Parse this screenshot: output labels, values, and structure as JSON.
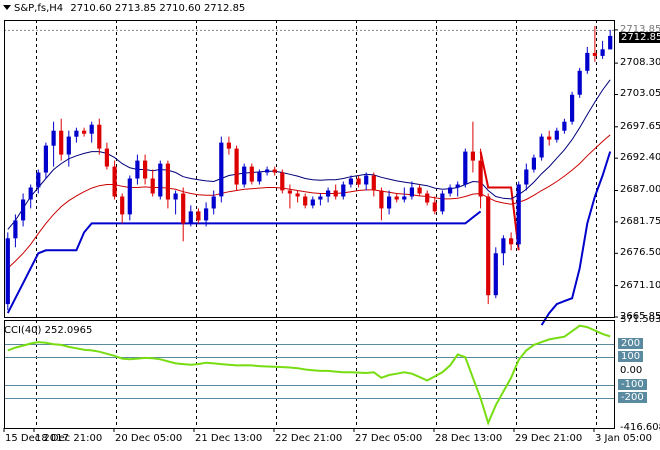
{
  "header": {
    "symbol": "S&P,fs,H4",
    "ohlc": "2710.60 2713.85 2710.60 2712.85"
  },
  "indicator": {
    "label": "CCI(40) 252.0965"
  },
  "colors": {
    "bull": "#0000cc",
    "bear": "#dd0000",
    "sma_dark": "#00007a",
    "sma_red": "#cc0000",
    "envelope": "#0000cc",
    "cci": "#77dd11",
    "level_line": "#5a8aa0",
    "grid": "#000000"
  },
  "chart_data": [
    {
      "type": "candlestick",
      "name": "main",
      "ylim": [
        2665.85,
        2715.5
      ],
      "price_ticks": [
        "2713.85",
        "2708.30",
        "2703.05",
        "2697.65",
        "2692.40",
        "2687.00",
        "2681.75",
        "2676.50",
        "2671.10",
        "2665.85"
      ],
      "current_price": "2712.85",
      "time_labels": [
        "15 Dec 2017",
        "18 Dec 21:00",
        "20 Dec 05:00",
        "21 Dec 13:00",
        "22 Dec 21:00",
        "27 Dec 05:00",
        "28 Dec 13:00",
        "29 Dec 21:00",
        "3 Jan 05:00"
      ],
      "candles": [
        [
          2668.0,
          2680.0,
          2667.0,
          2679.0
        ],
        [
          2679.0,
          2683.0,
          2677.5,
          2682.0
        ],
        [
          2682.0,
          2686.5,
          2681.0,
          2685.5
        ],
        [
          2685.5,
          2688.0,
          2684.0,
          2687.5
        ],
        [
          2687.5,
          2690.5,
          2686.5,
          2690.0
        ],
        [
          2690.0,
          2695.0,
          2689.0,
          2694.5
        ],
        [
          2694.5,
          2698.5,
          2691.0,
          2697.0
        ],
        [
          2697.0,
          2699.0,
          2692.0,
          2693.0
        ],
        [
          2693.0,
          2697.0,
          2691.0,
          2696.0
        ],
        [
          2696.0,
          2697.5,
          2695.0,
          2697.0
        ],
        [
          2697.0,
          2697.5,
          2696.0,
          2696.5
        ],
        [
          2696.5,
          2698.5,
          2695.0,
          2698.0
        ],
        [
          2698.0,
          2699.0,
          2693.0,
          2694.0
        ],
        [
          2694.0,
          2695.0,
          2690.5,
          2691.0
        ],
        [
          2691.0,
          2692.0,
          2685.5,
          2686.0
        ],
        [
          2686.0,
          2686.5,
          2681.5,
          2683.0
        ],
        [
          2683.0,
          2689.5,
          2682.0,
          2689.0
        ],
        [
          2689.0,
          2693.0,
          2688.0,
          2692.0
        ],
        [
          2692.0,
          2693.0,
          2688.0,
          2689.0
        ],
        [
          2689.0,
          2690.5,
          2686.0,
          2686.5
        ],
        [
          2686.0,
          2692.0,
          2685.5,
          2691.5
        ],
        [
          2691.5,
          2692.0,
          2684.0,
          2685.5
        ],
        [
          2685.5,
          2687.0,
          2683.0,
          2686.5
        ],
        [
          2686.5,
          2687.5,
          2678.5,
          2681.5
        ],
        [
          2681.5,
          2684.5,
          2681.0,
          2683.5
        ],
        [
          2683.5,
          2684.0,
          2681.5,
          2682.0
        ],
        [
          2682.0,
          2685.0,
          2681.0,
          2684.0
        ],
        [
          2684.0,
          2687.0,
          2683.0,
          2686.0
        ],
        [
          2686.0,
          2696.0,
          2685.0,
          2695.0
        ],
        [
          2695.0,
          2696.0,
          2693.0,
          2694.0
        ],
        [
          2694.0,
          2694.5,
          2687.0,
          2688.0
        ],
        [
          2688.0,
          2691.5,
          2687.5,
          2691.0
        ],
        [
          2691.0,
          2691.5,
          2688.0,
          2688.5
        ],
        [
          2688.5,
          2690.5,
          2688.0,
          2690.0
        ],
        [
          2690.0,
          2691.0,
          2689.5,
          2690.5
        ],
        [
          2690.5,
          2691.0,
          2689.5,
          2690.0
        ],
        [
          2690.0,
          2690.5,
          2686.5,
          2687.0
        ],
        [
          2687.0,
          2688.0,
          2684.0,
          2686.5
        ],
        [
          2686.5,
          2687.0,
          2685.0,
          2686.0
        ],
        [
          2686.0,
          2686.5,
          2684.0,
          2684.5
        ],
        [
          2684.5,
          2686.0,
          2684.0,
          2685.5
        ],
        [
          2685.5,
          2686.5,
          2684.5,
          2686.0
        ],
        [
          2686.0,
          2687.5,
          2685.0,
          2687.0
        ],
        [
          2687.0,
          2688.0,
          2685.5,
          2686.0
        ],
        [
          2686.0,
          2688.5,
          2685.5,
          2688.0
        ],
        [
          2688.0,
          2689.5,
          2687.5,
          2689.0
        ],
        [
          2689.0,
          2689.5,
          2687.5,
          2688.0
        ],
        [
          2688.0,
          2690.0,
          2687.0,
          2689.5
        ],
        [
          2689.5,
          2690.0,
          2686.0,
          2687.0
        ],
        [
          2687.0,
          2687.5,
          2682.0,
          2684.0
        ],
        [
          2684.0,
          2687.0,
          2683.0,
          2686.0
        ],
        [
          2686.0,
          2686.5,
          2685.0,
          2685.5
        ],
        [
          2685.5,
          2687.5,
          2685.0,
          2686.0
        ],
        [
          2686.0,
          2688.5,
          2685.5,
          2687.5
        ],
        [
          2687.5,
          2688.0,
          2686.0,
          2686.5
        ],
        [
          2686.5,
          2687.0,
          2684.5,
          2685.0
        ],
        [
          2685.0,
          2686.0,
          2683.0,
          2683.5
        ],
        [
          2683.5,
          2687.0,
          2683.0,
          2686.5
        ],
        [
          2686.5,
          2688.0,
          2686.0,
          2687.5
        ],
        [
          2687.5,
          2688.5,
          2686.0,
          2688.0
        ],
        [
          2688.0,
          2694.0,
          2687.5,
          2693.5
        ],
        [
          2693.5,
          2698.5,
          2690.0,
          2692.0
        ],
        [
          2692.0,
          2694.0,
          2684.0,
          2686.0
        ],
        [
          2686.0,
          2686.5,
          2668.0,
          2669.5
        ],
        [
          2669.5,
          2677.5,
          2669.0,
          2676.5
        ],
        [
          2676.5,
          2679.5,
          2674.5,
          2679.0
        ],
        [
          2679.0,
          2680.0,
          2677.0,
          2678.0
        ],
        [
          2678.0,
          2688.5,
          2677.5,
          2688.0
        ],
        [
          2688.0,
          2691.5,
          2687.0,
          2690.5
        ],
        [
          2690.5,
          2693.0,
          2690.0,
          2692.5
        ],
        [
          2692.5,
          2696.5,
          2692.0,
          2696.0
        ],
        [
          2696.0,
          2697.0,
          2694.5,
          2695.5
        ],
        [
          2695.5,
          2697.5,
          2695.0,
          2697.0
        ],
        [
          2697.0,
          2699.0,
          2696.5,
          2698.5
        ],
        [
          2698.5,
          2703.5,
          2698.0,
          2703.0
        ],
        [
          2703.0,
          2707.5,
          2702.5,
          2707.0
        ],
        [
          2707.0,
          2711.0,
          2706.5,
          2710.0
        ],
        [
          2710.0,
          2714.5,
          2708.5,
          2709.5
        ],
        [
          2709.5,
          2712.0,
          2709.0,
          2710.6
        ],
        [
          2710.6,
          2713.85,
          2710.6,
          2712.85
        ]
      ],
      "series": [
        {
          "style": "sma-dark",
          "values": [
            2680.5,
            2682.0,
            2684.0,
            2686.0,
            2687.5,
            2689.0,
            2690.5,
            2691.5,
            2692.3,
            2692.8,
            2693.2,
            2693.5,
            2693.5,
            2693.2,
            2692.5,
            2691.5,
            2690.8,
            2690.5,
            2690.5,
            2690.3,
            2690.5,
            2690.4,
            2690.0,
            2689.3,
            2689.0,
            2688.8,
            2688.6,
            2688.5,
            2689.0,
            2689.5,
            2689.7,
            2689.9,
            2690.0,
            2690.1,
            2690.2,
            2690.2,
            2690.0,
            2689.7,
            2689.4,
            2689.0,
            2688.8,
            2688.7,
            2688.8,
            2688.8,
            2689.0,
            2689.3,
            2689.5,
            2689.7,
            2689.6,
            2689.2,
            2688.9,
            2688.6,
            2688.4,
            2688.2,
            2688.0,
            2687.8,
            2687.4,
            2687.2,
            2687.3,
            2687.5,
            2688.0,
            2688.5,
            2688.4,
            2687.0,
            2686.0,
            2685.7,
            2685.6,
            2686.3,
            2687.2,
            2688.4,
            2689.8,
            2691.0,
            2692.4,
            2693.8,
            2695.5,
            2697.5,
            2699.7,
            2701.8,
            2703.8,
            2705.5
          ]
        },
        {
          "style": "sma-red",
          "values": [
            2674.0,
            2675.2,
            2676.5,
            2678.0,
            2679.8,
            2681.5,
            2683.0,
            2684.3,
            2685.3,
            2686.1,
            2686.8,
            2687.4,
            2687.8,
            2688.0,
            2688.0,
            2687.7,
            2687.5,
            2687.5,
            2687.6,
            2687.5,
            2687.5,
            2687.4,
            2687.2,
            2686.8,
            2686.5,
            2686.3,
            2686.2,
            2686.2,
            2686.5,
            2686.8,
            2687.0,
            2687.2,
            2687.3,
            2687.4,
            2687.5,
            2687.5,
            2687.4,
            2687.2,
            2687.0,
            2686.8,
            2686.6,
            2686.5,
            2686.5,
            2686.5,
            2686.6,
            2686.8,
            2687.0,
            2687.1,
            2687.1,
            2686.9,
            2686.7,
            2686.5,
            2686.4,
            2686.3,
            2686.1,
            2686.0,
            2685.8,
            2685.6,
            2685.6,
            2685.7,
            2686.0,
            2686.4,
            2686.5,
            2685.8,
            2685.2,
            2684.9,
            2684.7,
            2685.0,
            2685.5,
            2686.2,
            2687.0,
            2687.7,
            2688.5,
            2689.4,
            2690.4,
            2691.5,
            2692.8,
            2694.0,
            2695.2,
            2696.3
          ]
        },
        {
          "style": "envelope",
          "values": [
            2666.5,
            2669.0,
            2671.5,
            2674.0,
            2676.5,
            2677.0,
            2677.0,
            2677.0,
            2677.0,
            2677.0,
            2680.0,
            2681.5,
            2681.5,
            2681.5,
            2681.5,
            2681.5,
            2681.5,
            2681.5,
            2681.5,
            2681.5,
            2681.5,
            2681.5,
            2681.5,
            2681.5,
            2681.5,
            2681.5,
            2681.5,
            2681.5,
            2681.5,
            2681.5,
            2681.5,
            2681.5,
            2681.5,
            2681.5,
            2681.5,
            2681.5,
            2681.5,
            2681.5,
            2681.5,
            2681.5,
            2681.5,
            2681.5,
            2681.5,
            2681.5,
            2681.5,
            2681.5,
            2681.5,
            2681.5,
            2681.5,
            2681.5,
            2681.5,
            2681.5,
            2681.5,
            2681.5,
            2681.5,
            2681.5,
            2681.5,
            2681.5,
            2681.5,
            2681.5,
            2681.5,
            2682.5,
            2683.5,
            null,
            null,
            null,
            null,
            null,
            null,
            null,
            2664.5,
            2666.5,
            2668.0,
            2668.5,
            2669.0,
            2674.0,
            2681.5,
            2686.0,
            2689.5,
            2693.5
          ]
        },
        {
          "style": "stop-red",
          "values": [
            null,
            null,
            null,
            null,
            null,
            null,
            null,
            null,
            null,
            null,
            null,
            null,
            null,
            null,
            null,
            null,
            null,
            null,
            null,
            null,
            null,
            null,
            null,
            null,
            null,
            null,
            null,
            null,
            null,
            null,
            null,
            null,
            null,
            null,
            null,
            null,
            null,
            null,
            null,
            null,
            null,
            null,
            null,
            null,
            null,
            null,
            null,
            null,
            null,
            null,
            null,
            null,
            null,
            null,
            null,
            null,
            null,
            null,
            null,
            null,
            null,
            null,
            2693.5,
            2687.5,
            2687.5,
            2687.5,
            2687.5,
            2677.0,
            null,
            null,
            null,
            null,
            null,
            null,
            null,
            null,
            null,
            null,
            null,
            null
          ]
        }
      ]
    },
    {
      "type": "line",
      "name": "CCI(40)",
      "ylim": [
        -416.6083,
        371.5039
      ],
      "ticks": [
        "371.5039",
        "200",
        "100",
        "0.00",
        "-100",
        "-200",
        "-416.6083"
      ],
      "levels": [
        200,
        100,
        -100,
        -200
      ],
      "values": [
        150,
        170,
        185,
        200,
        210,
        205,
        195,
        190,
        175,
        165,
        155,
        150,
        140,
        125,
        110,
        90,
        85,
        90,
        95,
        92,
        85,
        70,
        55,
        50,
        45,
        50,
        60,
        55,
        50,
        45,
        40,
        42,
        40,
        35,
        32,
        30,
        28,
        25,
        20,
        10,
        5,
        0,
        0,
        -5,
        -10,
        -10,
        -12,
        -15,
        -10,
        -50,
        -30,
        -20,
        -10,
        -20,
        -45,
        -70,
        -40,
        -10,
        40,
        120,
        100,
        -50,
        -200,
        -380,
        -250,
        -150,
        -50,
        80,
        150,
        190,
        210,
        230,
        240,
        250,
        290,
        330,
        320,
        295,
        270,
        252
      ]
    }
  ]
}
